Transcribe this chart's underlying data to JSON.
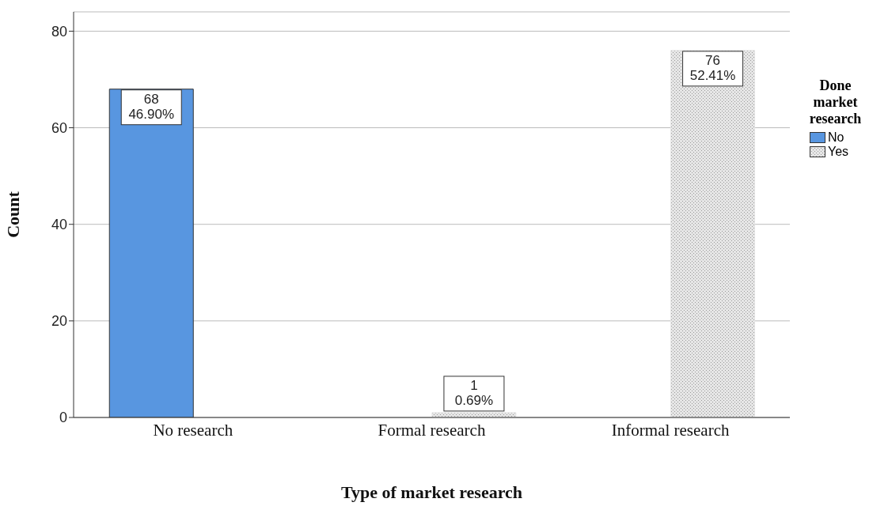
{
  "chart_data": {
    "type": "bar",
    "xlabel": "Type of market research",
    "ylabel": "Count",
    "legend_title": "Done market research",
    "categories": [
      "No research",
      "Formal research",
      "Informal research"
    ],
    "series": [
      {
        "name": "No",
        "color": "#5896e0",
        "values": [
          68,
          null,
          null
        ],
        "value_labels": [
          "68\n46.90%",
          null,
          null
        ]
      },
      {
        "name": "Yes",
        "color": "#e6e6e6",
        "values": [
          null,
          1,
          76
        ],
        "value_labels": [
          null,
          "1\n0.69%",
          "76\n52.41%"
        ]
      }
    ],
    "ylim": [
      0,
      84
    ],
    "yticks": [
      0,
      20,
      40,
      60,
      80
    ],
    "grid": "y",
    "legend": "right"
  }
}
